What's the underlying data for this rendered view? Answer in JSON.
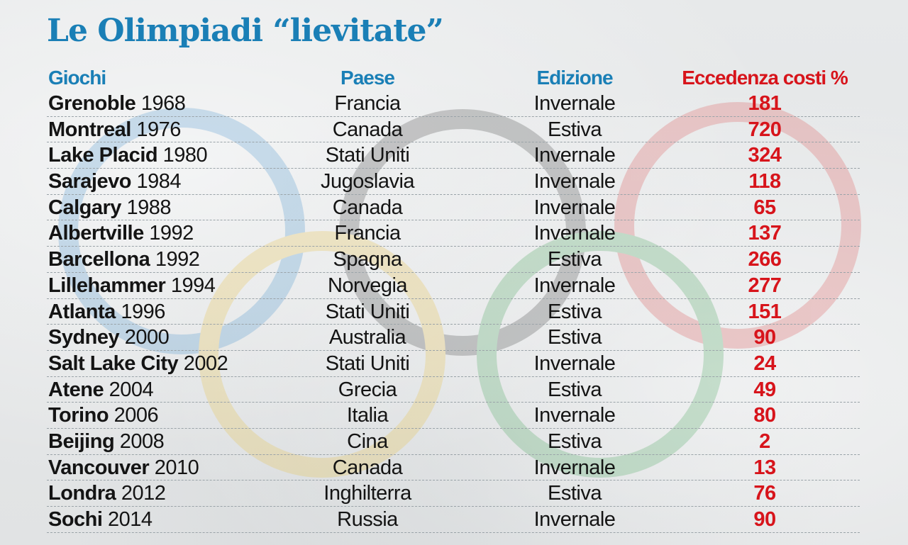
{
  "title": "Le Olimpiadi “lievitate”",
  "colors": {
    "title": "#1a7fb6",
    "header_blue": "#1a7fb6",
    "header_red": "#d7141b",
    "value_red": "#d7141b",
    "ring_blue": "#2f86c8",
    "ring_yellow": "#e8b92a",
    "ring_black": "#2b2b2b",
    "ring_green": "#2f9a45",
    "ring_red": "#d93a3a"
  },
  "columns": {
    "games": "Giochi",
    "country": "Paese",
    "edition": "Edizione",
    "overrun": "Eccedenza costi %"
  },
  "chart_data": {
    "type": "table",
    "title": "Le Olimpiadi “lievitate”",
    "columns": [
      "Giochi",
      "Paese",
      "Edizione",
      "Eccedenza costi %"
    ],
    "rows": [
      {
        "city": "Grenoble",
        "year": "1968",
        "country": "Francia",
        "edition": "Invernale",
        "overrun": 181
      },
      {
        "city": "Montreal",
        "year": "1976",
        "country": "Canada",
        "edition": "Estiva",
        "overrun": 720
      },
      {
        "city": "Lake Placid",
        "year": "1980",
        "country": "Stati Uniti",
        "edition": "Invernale",
        "overrun": 324
      },
      {
        "city": "Sarajevo",
        "year": "1984",
        "country": "Jugoslavia",
        "edition": "Invernale",
        "overrun": 118
      },
      {
        "city": "Calgary",
        "year": "1988",
        "country": "Canada",
        "edition": "Invernale",
        "overrun": 65
      },
      {
        "city": "Albertville",
        "year": "1992",
        "country": "Francia",
        "edition": "Invernale",
        "overrun": 137
      },
      {
        "city": "Barcellona",
        "year": "1992",
        "country": "Spagna",
        "edition": "Estiva",
        "overrun": 266
      },
      {
        "city": "Lillehammer",
        "year": "1994",
        "country": "Norvegia",
        "edition": "Invernale",
        "overrun": 277
      },
      {
        "city": "Atlanta",
        "year": "1996",
        "country": "Stati Uniti",
        "edition": "Estiva",
        "overrun": 151
      },
      {
        "city": "Sydney",
        "year": "2000",
        "country": "Australia",
        "edition": "Estiva",
        "overrun": 90
      },
      {
        "city": "Salt Lake City",
        "year": "2002",
        "country": "Stati Uniti",
        "edition": "Invernale",
        "overrun": 24
      },
      {
        "city": "Atene",
        "year": "2004",
        "country": "Grecia",
        "edition": "Estiva",
        "overrun": 49
      },
      {
        "city": "Torino",
        "year": "2006",
        "country": "Italia",
        "edition": "Invernale",
        "overrun": 80
      },
      {
        "city": "Beijing",
        "year": "2008",
        "country": "Cina",
        "edition": "Estiva",
        "overrun": 2
      },
      {
        "city": "Vancouver",
        "year": "2010",
        "country": "Canada",
        "edition": "Invernale",
        "overrun": 13
      },
      {
        "city": "Londra",
        "year": "2012",
        "country": "Inghilterra",
        "edition": "Estiva",
        "overrun": 76
      },
      {
        "city": "Sochi",
        "year": "2014",
        "country": "Russia",
        "edition": "Invernale",
        "overrun": 90
      }
    ]
  }
}
